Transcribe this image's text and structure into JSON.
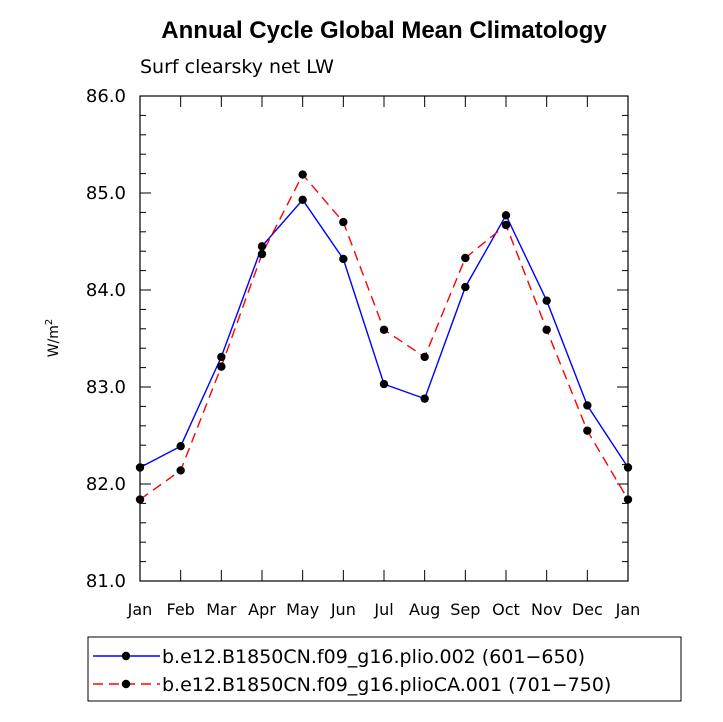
{
  "chart_data": {
    "type": "line",
    "title": "Annual Cycle Global Mean Climatology",
    "subtitle": "Surf clearsky net LW",
    "xlabel": "",
    "ylabel": "W/m",
    "ylabel_sup": "2",
    "categories": [
      "Jan",
      "Feb",
      "Mar",
      "Apr",
      "May",
      "Jun",
      "Jul",
      "Aug",
      "Sep",
      "Oct",
      "Nov",
      "Dec",
      "Jan"
    ],
    "ylim": [
      81.0,
      86.0
    ],
    "yticks": [
      "81.0",
      "82.0",
      "83.0",
      "84.0",
      "85.0",
      "86.0"
    ],
    "grid": false,
    "legend_position": "bottom",
    "series": [
      {
        "name": "b.e12.B1850CN.f09_g16.plio.002 (601−650)",
        "color": "#0000ff",
        "dash": "solid",
        "values": [
          82.17,
          82.39,
          83.31,
          84.45,
          84.93,
          84.32,
          83.03,
          82.88,
          84.03,
          84.77,
          83.89,
          82.81,
          82.17
        ]
      },
      {
        "name": "b.e12.B1850CN.f09_g16.plioCA.001 (701−750)",
        "color": "#ff0000",
        "dash": "dashed",
        "values": [
          81.84,
          82.14,
          83.21,
          84.37,
          85.19,
          84.7,
          83.59,
          83.31,
          84.33,
          84.67,
          83.59,
          82.55,
          81.84
        ]
      }
    ]
  }
}
